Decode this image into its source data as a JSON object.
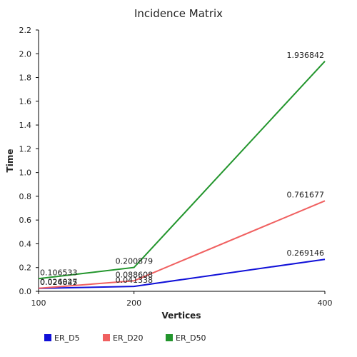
{
  "chart_data": {
    "type": "line",
    "title": "Incidence Matrix",
    "xlabel": "Vertices",
    "ylabel": "Time",
    "x": [
      100,
      200,
      400
    ],
    "xlim": [
      100,
      400
    ],
    "ylim": [
      0,
      2.2
    ],
    "xticks": [
      "100",
      "200",
      "400"
    ],
    "yticks": [
      "0.0",
      "0.2",
      "0.4",
      "0.6",
      "0.8",
      "1.0",
      "1.2",
      "1.4",
      "1.6",
      "1.8",
      "2.0",
      "2.2"
    ],
    "grid": false,
    "legend_position": "bottom-left",
    "series": [
      {
        "name": "ER_D5",
        "color": "#1010d8",
        "values": [
          0.024845,
          0.041338,
          0.269146
        ],
        "labels": [
          "0.024845",
          "0.041338",
          "0.269146"
        ]
      },
      {
        "name": "ER_D20",
        "color": "#f06060",
        "values": [
          0.026027,
          0.088608,
          0.761677
        ],
        "labels": [
          "0.026027",
          "0.088608",
          "0.761677"
        ]
      },
      {
        "name": "ER_D50",
        "color": "#22952c",
        "values": [
          0.106533,
          0.200879,
          1.936842
        ],
        "labels": [
          "0.106533",
          "0.200879",
          "1.936842"
        ]
      }
    ]
  }
}
